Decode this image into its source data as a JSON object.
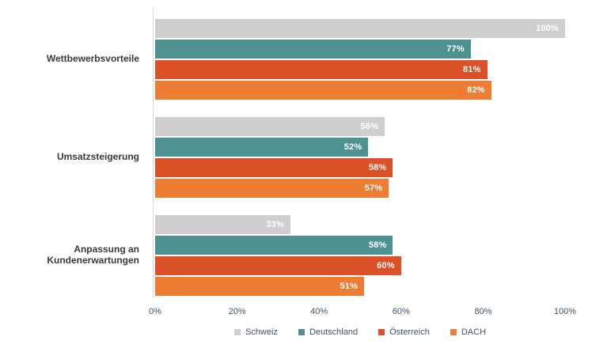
{
  "chart_data": {
    "type": "bar",
    "orientation": "horizontal",
    "title": "",
    "xlabel": "",
    "ylabel": "",
    "xlim": [
      0,
      100
    ],
    "grid": false,
    "legend_position": "bottom",
    "categories": [
      "Wettbewerbsvorteile",
      "Umsatzsteigerung",
      "Anpassung an Kundenerwartungen"
    ],
    "series": [
      {
        "name": "Schweiz",
        "color": "#D0CECE",
        "values": [
          100,
          56,
          33
        ]
      },
      {
        "name": "Deutschland",
        "color": "#4D9190",
        "values": [
          77,
          52,
          58
        ]
      },
      {
        "name": "Österreich",
        "color": "#DC5228",
        "values": [
          81,
          58,
          60
        ]
      },
      {
        "name": "DACH",
        "color": "#EC7D33",
        "values": [
          82,
          57,
          51
        ]
      }
    ],
    "value_labels": [
      [
        "100%",
        "77%",
        "81%",
        "82%"
      ],
      [
        "56%",
        "52%",
        "58%",
        "57%"
      ],
      [
        "33%",
        "58%",
        "60%",
        "51%"
      ]
    ],
    "x_ticks": [
      "0%",
      "20%",
      "40%",
      "60%",
      "80%",
      "100%"
    ]
  },
  "colors": {
    "axis_line": "#d9d9d9",
    "tick_text": "#44546a",
    "category_text": "#3a3a3a",
    "value_text": "#ffffff"
  }
}
